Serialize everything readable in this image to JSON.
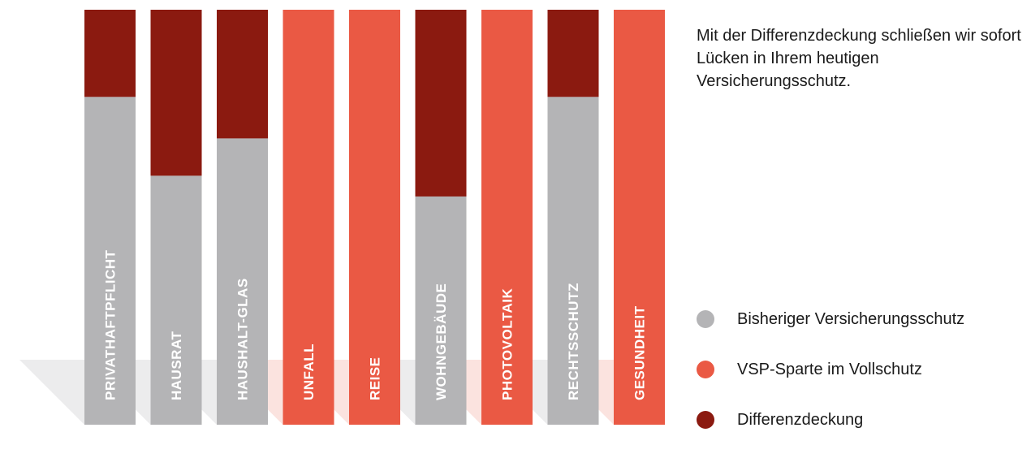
{
  "intro_text": "Mit der Differenzdeckung schließen wir sofort Lücken in Ihrem heutigen Versicherungsschutz.",
  "colors": {
    "grey": "#B4B4B6",
    "orange": "#EA5944",
    "darkred": "#8B1A10"
  },
  "legend": [
    {
      "label": "Bisheriger Versicherungsschutz",
      "color": "#B4B4B6"
    },
    {
      "label": "VSP-Sparte im Vollschutz",
      "color": "#EA5944"
    },
    {
      "label": "Differenzdeckung",
      "color": "#8B1A10"
    }
  ],
  "chart_data": {
    "type": "bar",
    "stacked": true,
    "ylim": [
      0,
      100
    ],
    "categories": [
      "PRIVATHAFTPFLICHT",
      "HAUSRAT",
      "HAUSHALT-GLAS",
      "UNFALL",
      "REISE",
      "WOHNGEBÄUDE",
      "PHOTOVOLTAIK",
      "RECHTSSCHUTZ",
      "GESUNDHEIT"
    ],
    "series": [
      {
        "name": "Bisheriger Versicherungsschutz",
        "color": "#B4B4B6",
        "values": [
          79,
          60,
          69,
          0,
          0,
          55,
          0,
          79,
          0
        ]
      },
      {
        "name": "VSP-Sparte im Vollschutz",
        "color": "#EA5944",
        "values": [
          0,
          0,
          0,
          100,
          100,
          0,
          100,
          0,
          100
        ]
      },
      {
        "name": "Differenzdeckung",
        "color": "#8B1A10",
        "values": [
          21,
          40,
          31,
          0,
          0,
          45,
          0,
          21,
          0
        ]
      }
    ]
  }
}
